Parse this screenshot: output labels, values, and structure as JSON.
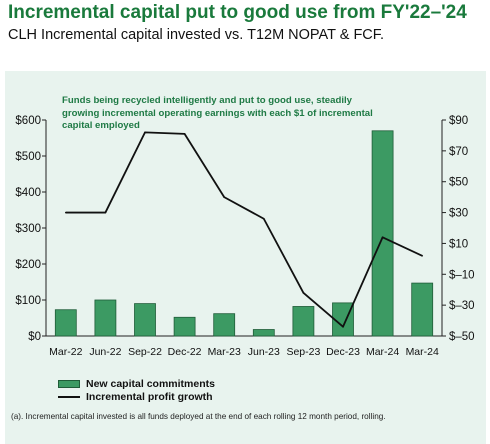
{
  "title": "Incremental capital put to good use from FY'22–'24",
  "subtitle": "CLH Incremental capital invested vs. T12M NOPAT & FCF.",
  "annotation": "Funds being recycled intelligently and put to good use, steadily growing incremental operating earnings with each $1 of incremental capital employed",
  "footnote": "(a). Incremental capital invested is all funds deployed at the end of each rolling 12 month period, rolling.",
  "colors": {
    "bar": "#3c9a63",
    "bar_edge": "#1f5c38",
    "line": "#111111",
    "title": "#1a7a3c"
  },
  "chart_data": {
    "type": "bar",
    "categories": [
      "Mar-22",
      "Jun-22",
      "Sep-22",
      "Dec-22",
      "Mar-23",
      "Jun-23",
      "Sep-23",
      "Dec-23",
      "Mar-24",
      "Mar-24"
    ],
    "series": [
      {
        "name": "New capital commitments",
        "type": "bar",
        "axis": "left",
        "values": [
          73,
          100,
          90,
          52,
          62,
          18,
          82,
          92,
          570,
          147
        ]
      },
      {
        "name": "Incremental profit growth",
        "type": "line",
        "axis": "right",
        "values": [
          30,
          30,
          82,
          81,
          40,
          26,
          -22,
          -44,
          14,
          2
        ]
      }
    ],
    "y_left": {
      "min": 0,
      "max": 600,
      "ticks": [
        0,
        100,
        200,
        300,
        400,
        500,
        600
      ],
      "tick_labels": [
        "$0",
        "$100",
        "$200",
        "$300",
        "$400",
        "$500",
        "$600"
      ]
    },
    "y_right": {
      "min": -50,
      "max": 90,
      "ticks": [
        -50,
        -30,
        -10,
        10,
        30,
        50,
        70,
        90
      ],
      "tick_labels": [
        "$–50",
        "$–30",
        "$–10",
        "$10",
        "$30",
        "$50",
        "$70",
        "$90"
      ]
    },
    "legend": {
      "position": "bottom-left",
      "entries": [
        "New capital commitments",
        "Incremental profit growth"
      ]
    },
    "grid": false
  }
}
